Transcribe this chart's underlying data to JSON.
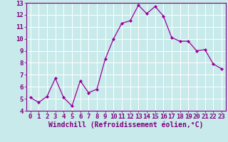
{
  "x": [
    0,
    1,
    2,
    3,
    4,
    5,
    6,
    7,
    8,
    9,
    10,
    11,
    12,
    13,
    14,
    15,
    16,
    17,
    18,
    19,
    20,
    21,
    22,
    23
  ],
  "y": [
    5.1,
    4.7,
    5.2,
    6.7,
    5.1,
    4.4,
    6.5,
    5.5,
    5.8,
    8.3,
    10.0,
    11.3,
    11.5,
    12.8,
    12.1,
    12.7,
    11.9,
    10.1,
    9.8,
    9.8,
    9.0,
    9.1,
    7.9,
    7.5
  ],
  "line_color": "#990099",
  "marker": "D",
  "marker_size": 2.2,
  "bg_color": "#c8eaea",
  "grid_color": "#ffffff",
  "xlabel": "Windchill (Refroidissement éolien,°C)",
  "xlim": [
    -0.5,
    23.5
  ],
  "ylim": [
    4,
    13
  ],
  "yticks": [
    4,
    5,
    6,
    7,
    8,
    9,
    10,
    11,
    12,
    13
  ],
  "xticks": [
    0,
    1,
    2,
    3,
    4,
    5,
    6,
    7,
    8,
    9,
    10,
    11,
    12,
    13,
    14,
    15,
    16,
    17,
    18,
    19,
    20,
    21,
    22,
    23
  ],
  "xlabel_fontsize": 7.0,
  "tick_fontsize": 6.5,
  "label_color": "#800080",
  "spine_color": "#800080",
  "linewidth": 0.9
}
